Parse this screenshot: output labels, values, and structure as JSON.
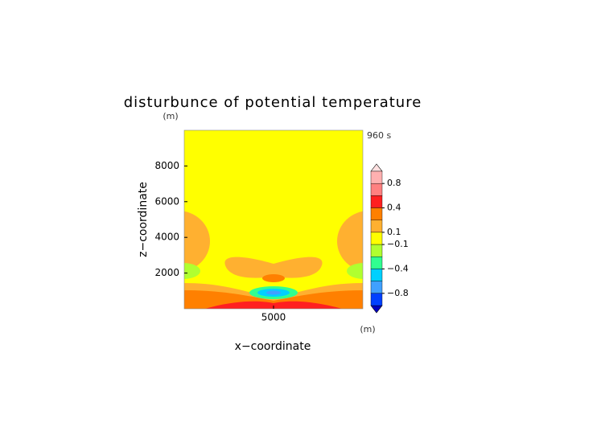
{
  "chart_data": {
    "type": "contour",
    "title": "disturbunce of potential temperature",
    "x_label": "x−coordinate",
    "y_label": "z−coordinate",
    "x_unit": "(m)",
    "y_unit": "(m)",
    "time_label": "960 s",
    "xlim": [
      0,
      10000
    ],
    "ylim": [
      0,
      10000
    ],
    "xticks": [
      5000
    ],
    "yticks": [
      2000,
      4000,
      6000,
      8000
    ],
    "colorbar": {
      "levels": [
        1.0,
        0.8,
        0.6,
        0.4,
        0.2,
        0.1,
        -0.1,
        -0.2,
        -0.4,
        -0.6,
        -0.8,
        -1.0
      ],
      "colors": [
        "#ffb0b0",
        "#ff8080",
        "#ff2020",
        "#ff8000",
        "#ffb030",
        "#ffff00",
        "#b0ff30",
        "#30ff90",
        "#00d0ff",
        "#40a0ff",
        "#0040ff"
      ],
      "over_color": "#ffe0e0",
      "under_color": "#0000c0",
      "ticks": [
        0.8,
        0.4,
        0.1,
        {
          "value": -0.1,
          "label": "−0.1"
        },
        {
          "value": -0.4,
          "label": "−0.4"
        },
        {
          "value": -0.8,
          "label": "−0.8"
        }
      ]
    }
  }
}
